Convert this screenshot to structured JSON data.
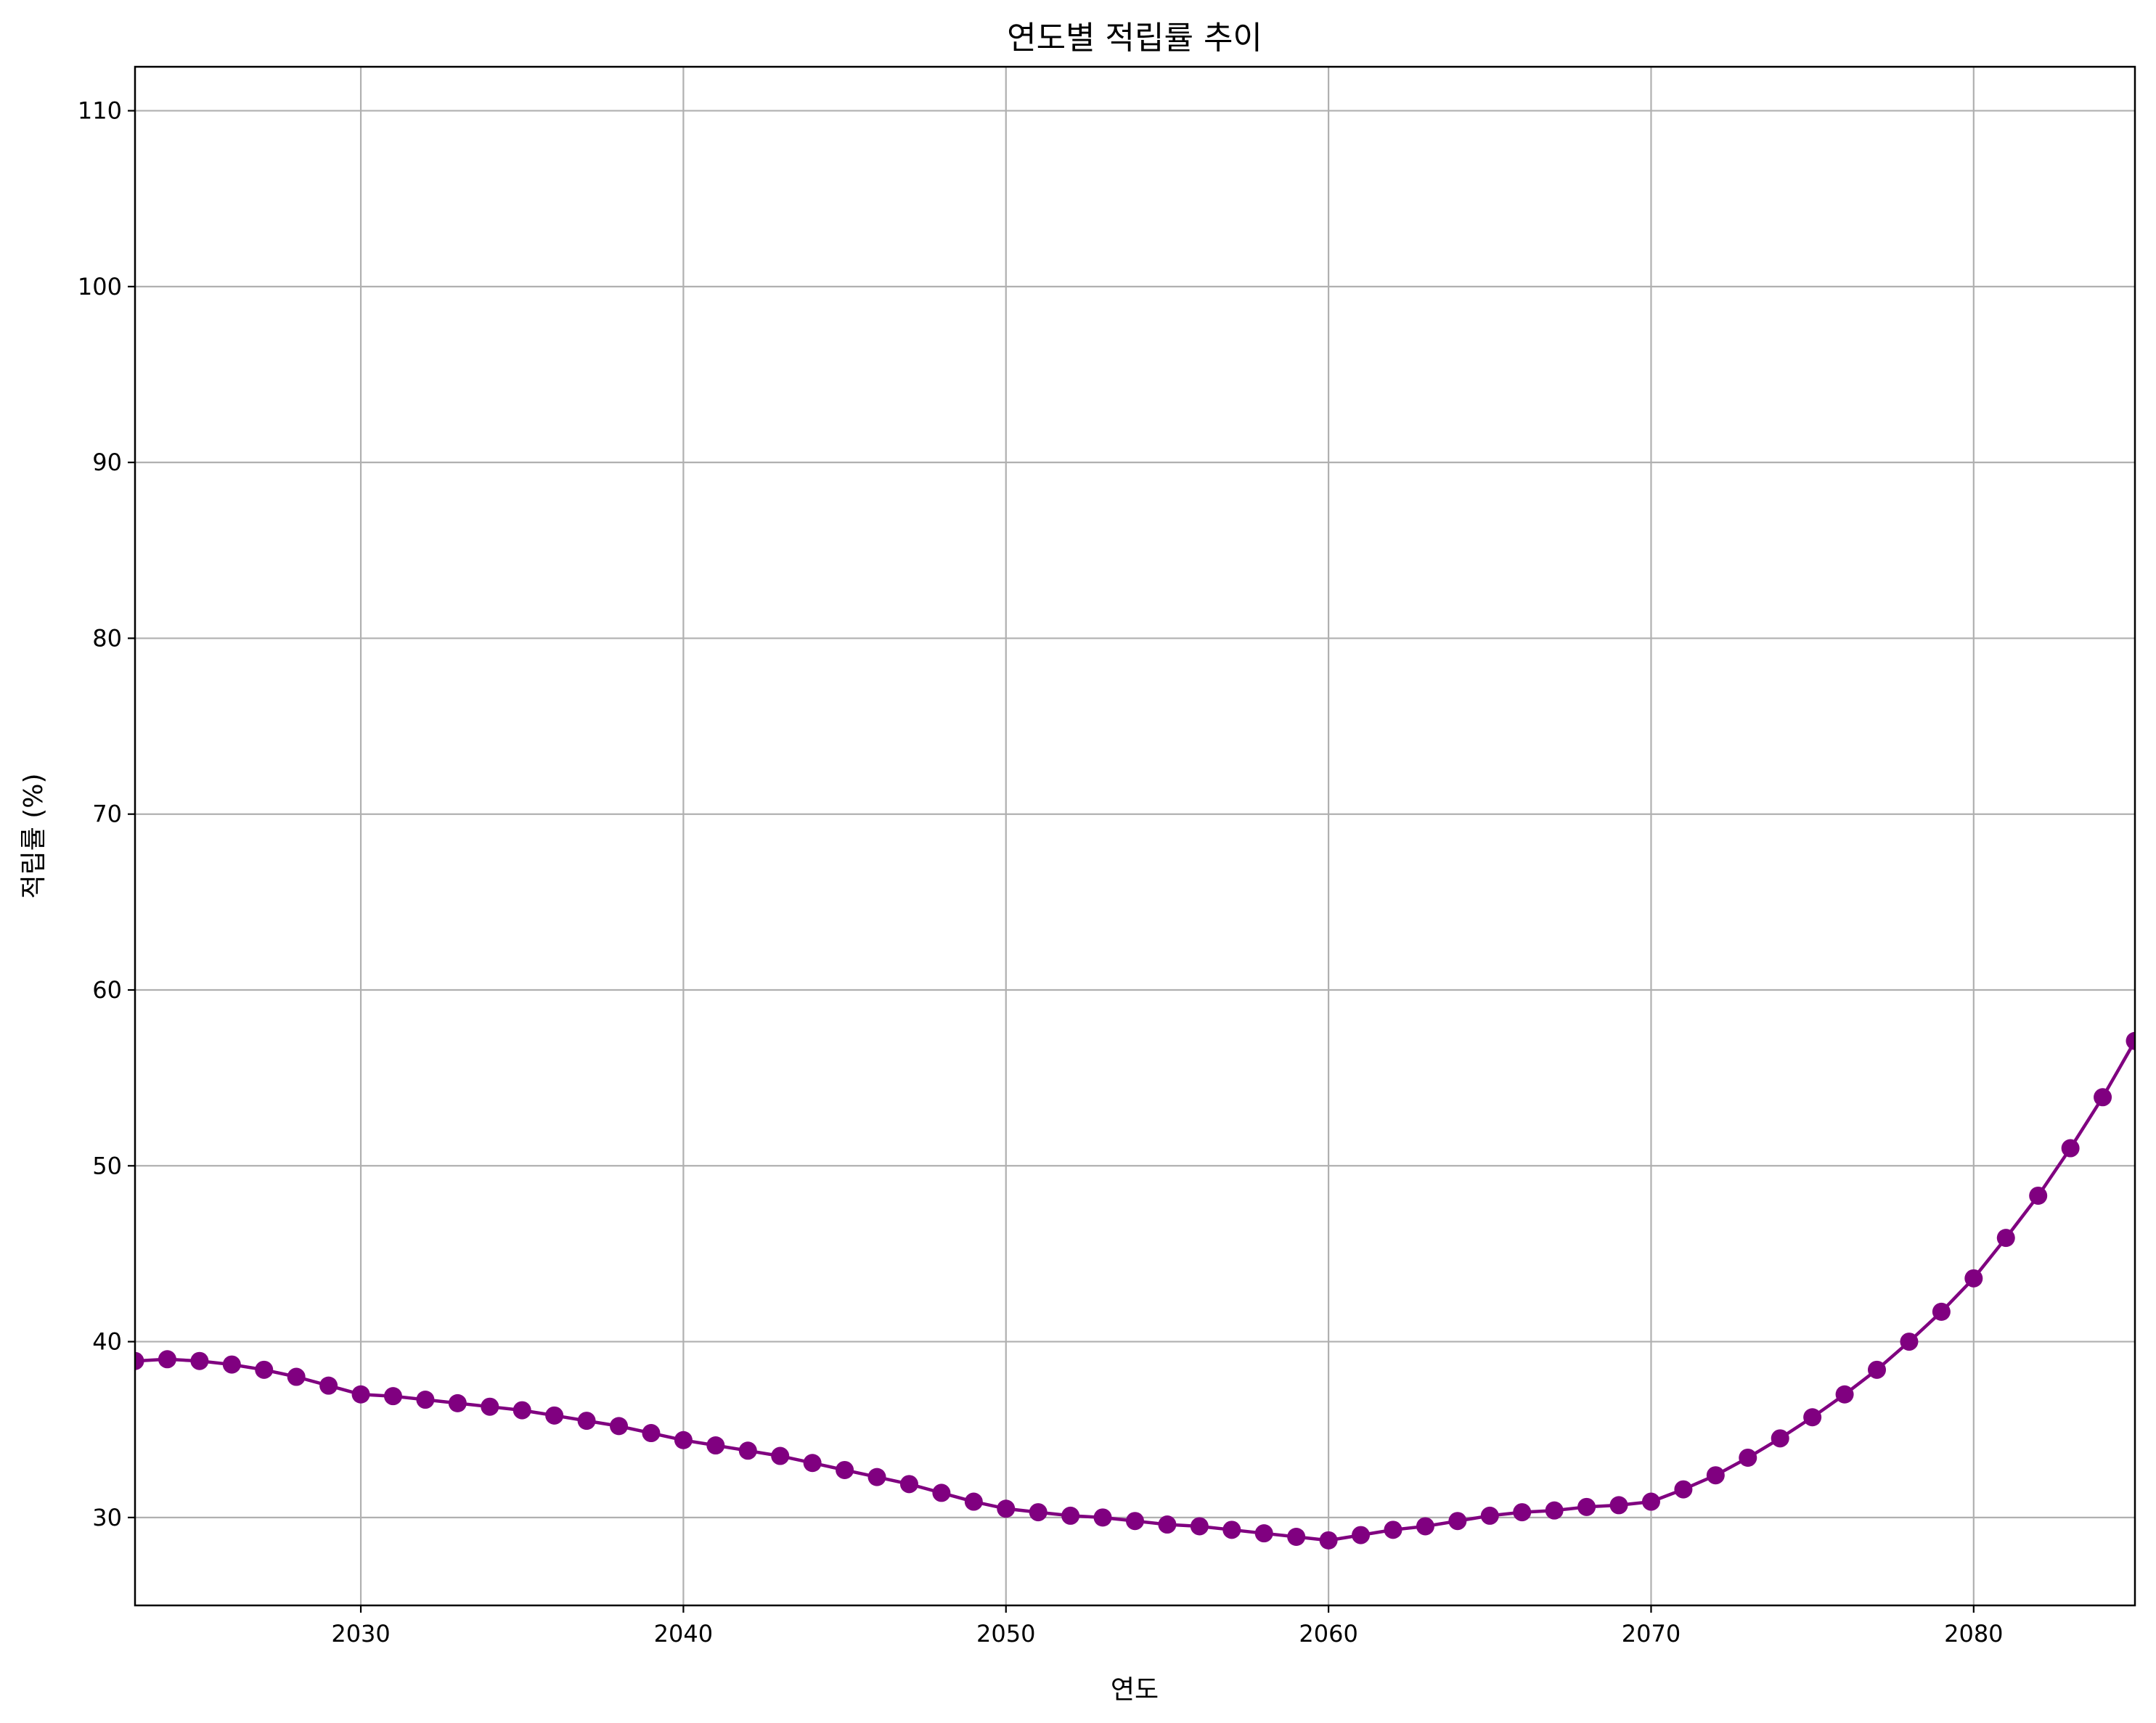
{
  "chart_data": {
    "type": "line",
    "title": "연도별 적립률 추이",
    "xlabel": "연도",
    "ylabel": "적립률 (%)",
    "xlim": [
      2023,
      2085
    ],
    "ylim": [
      25,
      112.5
    ],
    "xticks": [
      2030,
      2040,
      2050,
      2060,
      2070,
      2080
    ],
    "yticks": [
      30,
      40,
      50,
      60,
      70,
      80,
      90,
      100,
      110
    ],
    "grid": true,
    "color": "#800080",
    "x": [
      2023,
      2024,
      2025,
      2026,
      2027,
      2028,
      2029,
      2030,
      2031,
      2032,
      2033,
      2034,
      2035,
      2036,
      2037,
      2038,
      2039,
      2040,
      2041,
      2042,
      2043,
      2044,
      2045,
      2046,
      2047,
      2048,
      2049,
      2050,
      2051,
      2052,
      2053,
      2054,
      2055,
      2056,
      2057,
      2058,
      2059,
      2060,
      2061,
      2062,
      2063,
      2064,
      2065,
      2066,
      2067,
      2068,
      2069,
      2070,
      2071,
      2072,
      2073,
      2074,
      2075,
      2076,
      2077,
      2078,
      2079,
      2080,
      2081,
      2082,
      2083,
      2084,
      2085
    ],
    "series": [
      {
        "values": [
          38.9,
          39.0,
          38.9,
          38.7,
          38.4,
          38.0,
          37.5,
          37.0,
          36.9,
          36.7,
          36.5,
          36.3,
          36.1,
          35.8,
          35.5,
          35.2,
          34.8,
          34.4,
          34.1,
          33.8,
          33.5,
          33.1,
          32.7,
          32.3,
          31.9,
          31.4,
          30.9,
          30.5,
          30.3,
          30.1,
          30.0,
          29.8,
          29.6,
          29.5,
          29.3,
          29.1,
          28.9,
          28.7,
          29.0,
          29.3,
          29.5,
          29.8,
          30.1,
          30.3,
          30.4,
          30.6,
          30.7,
          30.9,
          31.6,
          32.4,
          33.4,
          34.5,
          35.7,
          37.0,
          38.4,
          40.0,
          41.7,
          43.6,
          45.9,
          48.3,
          51.0,
          53.9,
          57.1
        ]
      }
    ]
  }
}
